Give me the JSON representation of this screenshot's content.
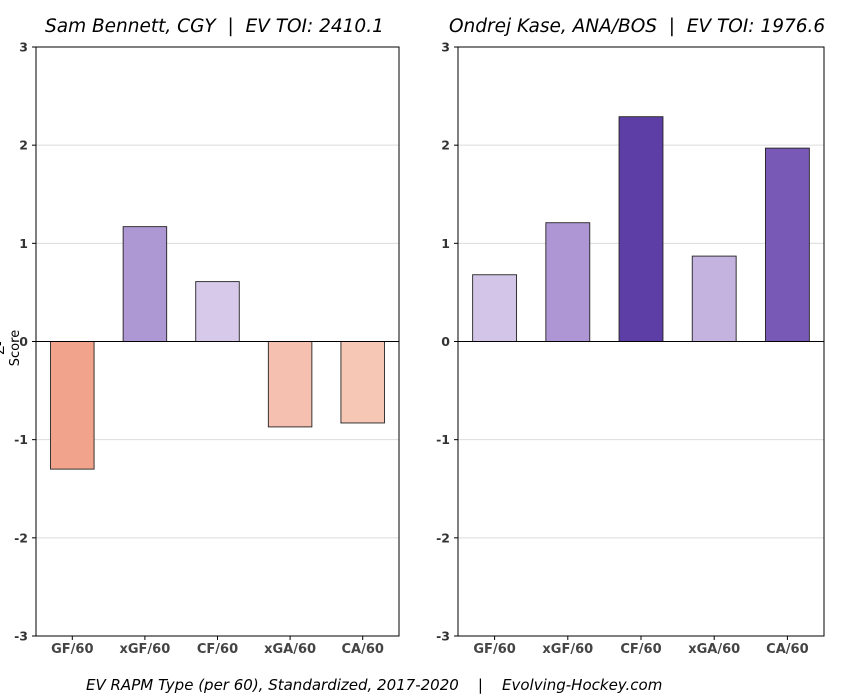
{
  "caption": "EV RAPM Type (per 60), Standardized, 2017-2020    |    Evolving-Hockey.com",
  "chart_data": [
    {
      "type": "bar",
      "title": "Sam Bennett, CGY  |  EV TOI: 2410.1",
      "ylabel": "Z-Score",
      "xlabel": "",
      "ylim": [
        -3,
        3
      ],
      "yticks": [
        "-3",
        "-2",
        "-1",
        "0",
        "1",
        "2",
        "3"
      ],
      "grid": true,
      "categories": [
        "GF/60",
        "xGF/60",
        "CF/60",
        "xGA/60",
        "CA/60"
      ],
      "values": [
        -1.3,
        1.17,
        0.61,
        -0.87,
        -0.83
      ],
      "colors": [
        "#f2a38c",
        "#ae98d4",
        "#d7c9ea",
        "#f5c0b0",
        "#f7c7b5"
      ]
    },
    {
      "type": "bar",
      "title": "Ondrej Kase, ANA/BOS  |  EV TOI: 1976.6",
      "ylabel": "",
      "xlabel": "",
      "ylim": [
        -3,
        3
      ],
      "yticks": [
        "-3",
        "-2",
        "-1",
        "0",
        "1",
        "2",
        "3"
      ],
      "grid": true,
      "categories": [
        "GF/60",
        "xGF/60",
        "CF/60",
        "xGA/60",
        "CA/60"
      ],
      "values": [
        0.68,
        1.21,
        2.29,
        0.87,
        1.97
      ],
      "colors": [
        "#d3c5e8",
        "#ad96d3",
        "#5c3ea6",
        "#c4b3df",
        "#7859b5"
      ]
    }
  ]
}
